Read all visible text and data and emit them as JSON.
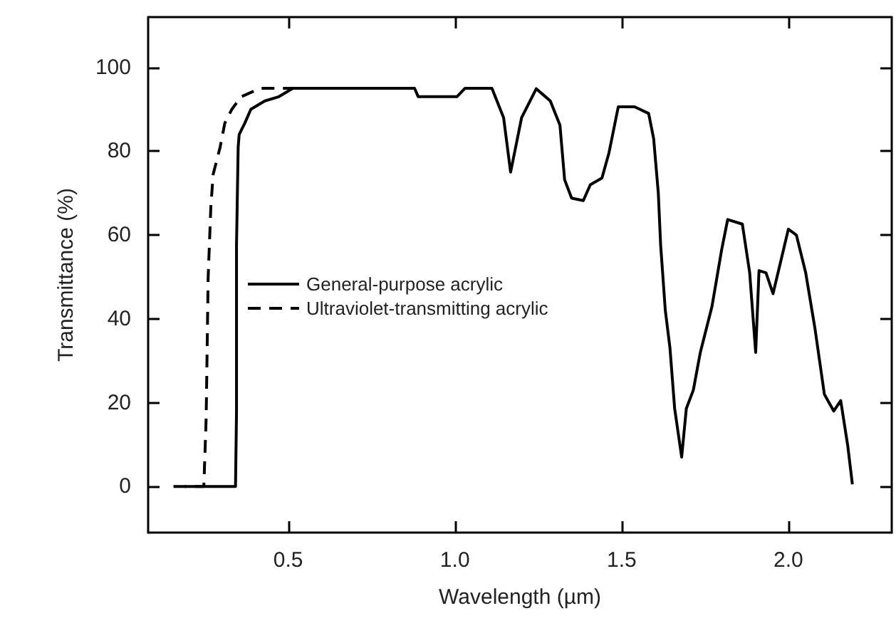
{
  "chart_data": {
    "type": "line",
    "xlabel": "Wavelength (µm)",
    "ylabel": "Transmittance (%)",
    "xlim": [
      0.08,
      2.31
    ],
    "ylim": [
      -11,
      112
    ],
    "xticks": [
      0.5,
      {
        "value": 1,
        "label": "1.0"
      },
      1.5,
      {
        "value": 2,
        "label": "2.0"
      }
    ],
    "yticks": [
      0,
      20,
      40,
      60,
      80,
      100
    ],
    "grid": false,
    "legend": "left",
    "marker": "none",
    "series": [
      {
        "name": "General-purpose acrylic",
        "color": "#000000",
        "line_style": "solid",
        "x": [
          0.19,
          0.342,
          0.345,
          0.345,
          0.35,
          0.353,
          0.37,
          0.388,
          0.43,
          0.472,
          0.514,
          0.879,
          0.89,
          1.006,
          1.03,
          1.111,
          1.146,
          1.167,
          1.2,
          1.244,
          1.286,
          1.315,
          1.329,
          1.35,
          1.385,
          1.406,
          1.441,
          1.462,
          1.49,
          1.539,
          1.581,
          1.596,
          1.61,
          1.617,
          1.631,
          1.645,
          1.659,
          1.68,
          1.694,
          1.715,
          1.736,
          1.771,
          1.8,
          1.818,
          1.862,
          1.884,
          1.902,
          1.912,
          1.933,
          1.954,
          1.975,
          2.0,
          2.024,
          2.052,
          2.08,
          2.108,
          2.136,
          2.157,
          2.178,
          2.192
        ],
        "values": [
          0,
          0,
          17.7,
          57.6,
          81,
          84,
          86.7,
          90,
          92,
          93,
          95,
          95,
          93,
          93,
          95,
          95,
          88,
          75,
          88,
          94.9,
          92,
          86.2,
          73.2,
          68.8,
          68.2,
          72,
          73.6,
          79.6,
          90.6,
          90.6,
          89,
          83,
          70,
          57.6,
          42,
          33,
          18.6,
          7,
          18.6,
          23,
          32,
          43,
          56.5,
          63.7,
          62.6,
          51,
          32,
          51.5,
          51,
          46,
          53,
          61.4,
          60,
          51,
          37.6,
          22,
          18,
          20.5,
          9.8,
          0.5
        ]
      },
      {
        "name": "Ultraviolet-transmitting acrylic",
        "color": "#000000",
        "line_style": "dashed",
        "x": [
          0.156,
          0.247,
          0.254,
          0.26,
          0.268,
          0.275,
          0.296,
          0.31,
          0.331,
          0.359,
          0.416,
          0.514
        ],
        "values": [
          0,
          0,
          16.4,
          50,
          66.7,
          74.5,
          81,
          86.7,
          90,
          93,
          95,
          95
        ]
      }
    ]
  }
}
